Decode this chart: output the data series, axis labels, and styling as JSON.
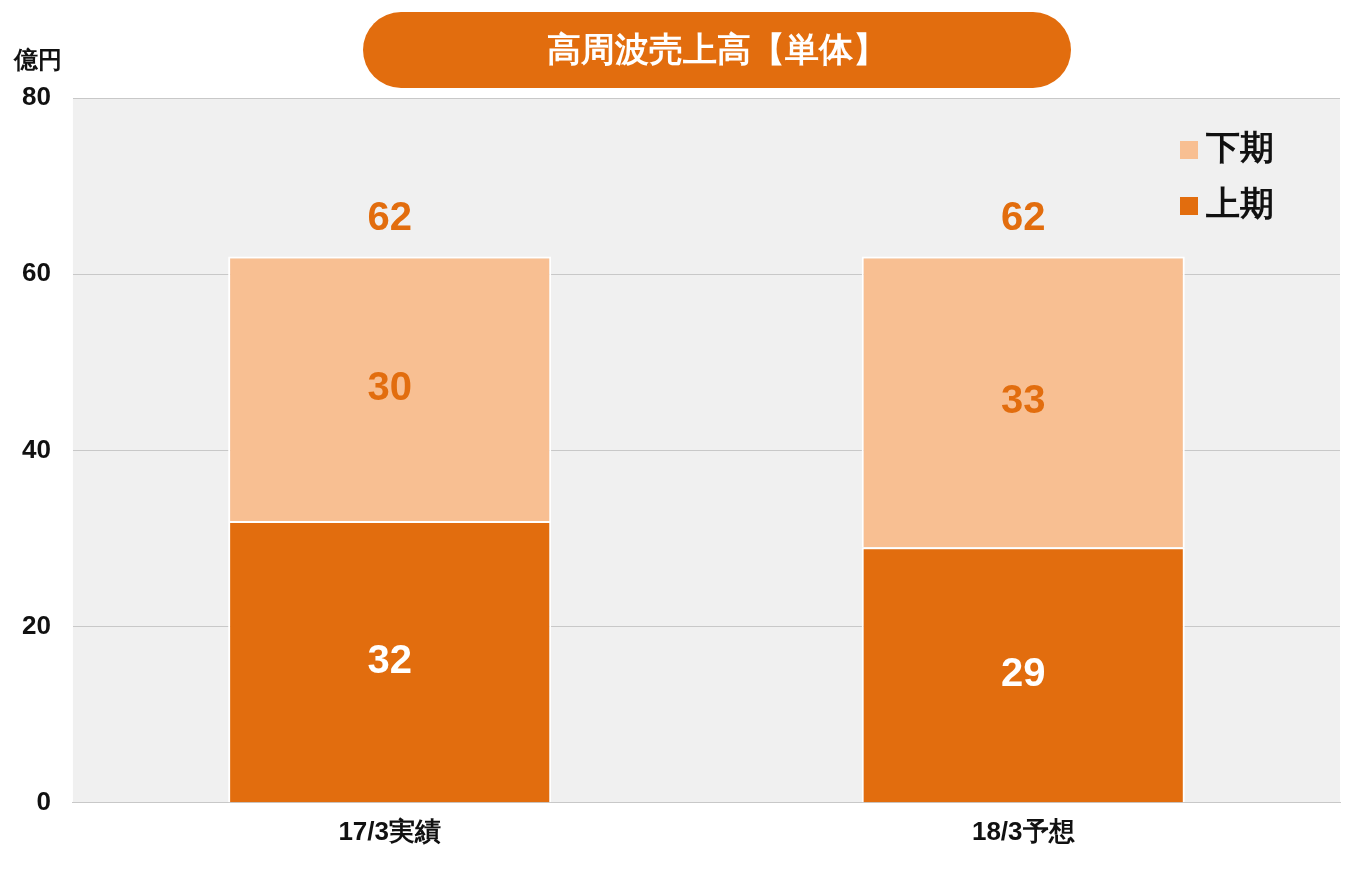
{
  "chart_data": {
    "type": "bar",
    "title": "高周波売上高【単体】",
    "ylabel": "億円",
    "categories": [
      "17/3実績",
      "18/3予想"
    ],
    "series": [
      {
        "name": "上期",
        "color": "#e26d0e",
        "values": [
          32,
          29
        ]
      },
      {
        "name": "下期",
        "color": "#f8bf92",
        "values": [
          30,
          33
        ]
      }
    ],
    "stacked": true,
    "ylim": [
      0,
      80
    ],
    "yticks": [
      0,
      20,
      40,
      60,
      80
    ],
    "grid": "y",
    "legend": "top right",
    "data_labels": true,
    "totals": [
      "62",
      "62"
    ]
  }
}
